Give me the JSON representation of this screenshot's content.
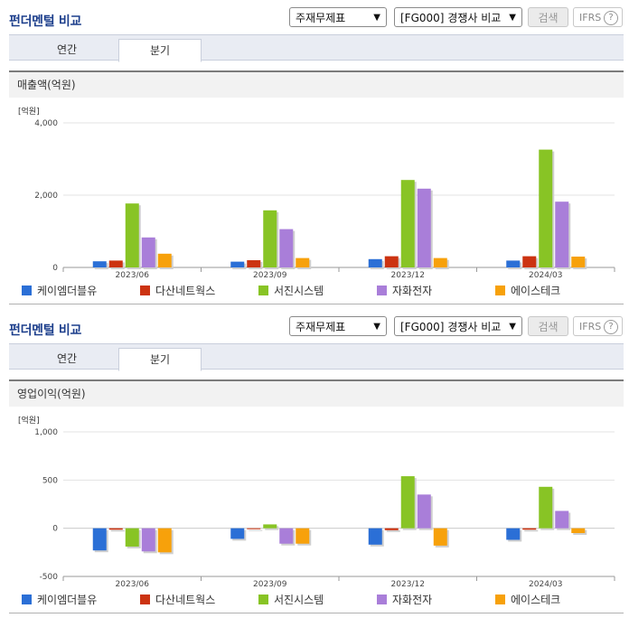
{
  "colors": [
    "#2b6fd6",
    "#cc3311",
    "#88c425",
    "#a97ed9",
    "#f7a10b"
  ],
  "panels": [
    {
      "title": "펀더멘털 비교",
      "select1": "주재무제표",
      "select2": "[FG000] 경쟁사 비교",
      "search_label": "검색",
      "ifrs_label": "IFRS",
      "help_label": "?",
      "tabs": [
        "연간",
        "분기"
      ],
      "metric_label": "매출액(억원)"
    },
    {
      "title": "펀더멘털 비교",
      "select1": "주재무제표",
      "select2": "[FG000] 경쟁사 비교",
      "search_label": "검색",
      "ifrs_label": "IFRS",
      "help_label": "?",
      "tabs": [
        "연간",
        "분기"
      ],
      "metric_label": "영업이익(억원)"
    }
  ],
  "chart_data": [
    {
      "type": "bar",
      "unit": "[억원]",
      "categories": [
        "2023/06",
        "2023/09",
        "2023/12",
        "2024/03"
      ],
      "ylim": [
        0,
        4000
      ],
      "yticks": [
        0,
        2000,
        4000
      ],
      "ytick_labels": [
        "0",
        "2,000",
        "4,000"
      ],
      "grid": true,
      "legend_position": "bottom",
      "series": [
        {
          "name": "케이엠더블유",
          "values": [
            170,
            160,
            230,
            190
          ]
        },
        {
          "name": "다산네트웍스",
          "values": [
            190,
            200,
            310,
            310
          ]
        },
        {
          "name": "서진시스템",
          "values": [
            1770,
            1580,
            2420,
            3260
          ]
        },
        {
          "name": "자화전자",
          "values": [
            830,
            1060,
            2180,
            1820
          ]
        },
        {
          "name": "에이스테크",
          "values": [
            380,
            260,
            260,
            300
          ]
        }
      ]
    },
    {
      "type": "bar",
      "unit": "[억원]",
      "categories": [
        "2023/06",
        "2023/09",
        "2023/12",
        "2024/03"
      ],
      "ylim": [
        -500,
        1000
      ],
      "yticks": [
        -500,
        0,
        500,
        1000
      ],
      "ytick_labels": [
        "-500",
        "0",
        "500",
        "1,000"
      ],
      "grid": true,
      "legend_position": "bottom",
      "series": [
        {
          "name": "케이엠더블유",
          "values": [
            -230,
            -110,
            -170,
            -120
          ]
        },
        {
          "name": "다산네트웍스",
          "values": [
            -15,
            0,
            -20,
            -15
          ]
        },
        {
          "name": "서진시스템",
          "values": [
            -190,
            40,
            540,
            430
          ]
        },
        {
          "name": "자화전자",
          "values": [
            -240,
            -160,
            350,
            180
          ]
        },
        {
          "name": "에이스테크",
          "values": [
            -250,
            -160,
            -180,
            -50
          ]
        }
      ]
    }
  ]
}
